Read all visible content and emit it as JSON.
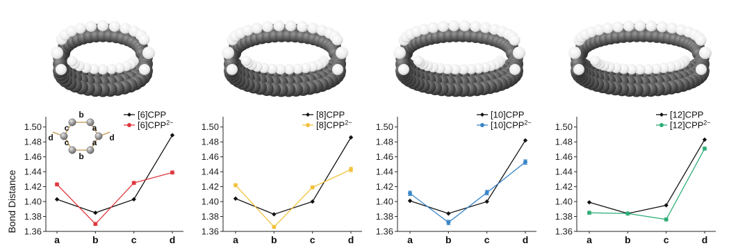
{
  "ylabel": "Bond Distance",
  "inset_labels": [
    "a",
    "b",
    "c",
    "d"
  ],
  "colors": {
    "reference": "#111111",
    "panel1": "#e0393e",
    "panel2": "#f2c23c",
    "panel3": "#3a86c8",
    "panel4": "#2fae78"
  },
  "chart_data": [
    {
      "type": "line",
      "categories": [
        "a",
        "b",
        "c",
        "d"
      ],
      "ylim": [
        1.36,
        1.51
      ],
      "yticks": [
        "1.36",
        "1.38",
        "1.40",
        "1.42",
        "1.44",
        "1.46",
        "1.48",
        "1.50"
      ],
      "ylabel": "Bond Distance",
      "series": [
        {
          "name": "[6]CPP",
          "sup": "",
          "color": "#111111",
          "marker": "diamond",
          "values": [
            1.403,
            1.385,
            1.403,
            1.489
          ],
          "errors": [
            0,
            0,
            0,
            0
          ]
        },
        {
          "name": "[6]CPP",
          "sup": "2−",
          "color": "#e0393e",
          "marker": "circle",
          "values": [
            1.423,
            1.37,
            1.425,
            1.439
          ],
          "errors": [
            0.002,
            0.002,
            0.002,
            0.002
          ]
        }
      ]
    },
    {
      "type": "line",
      "categories": [
        "a",
        "b",
        "c",
        "d"
      ],
      "ylim": [
        1.36,
        1.51
      ],
      "yticks": [
        "1.36",
        "1.38",
        "1.40",
        "1.42",
        "1.44",
        "1.46",
        "1.48",
        "1.50"
      ],
      "series": [
        {
          "name": "[8]CPP",
          "sup": "",
          "color": "#111111",
          "marker": "diamond",
          "values": [
            1.404,
            1.383,
            1.4,
            1.486
          ],
          "errors": [
            0,
            0,
            0,
            0
          ]
        },
        {
          "name": "[8]CPP",
          "sup": "2−",
          "color": "#f2c23c",
          "marker": "circle",
          "values": [
            1.422,
            1.366,
            1.419,
            1.443
          ],
          "errors": [
            0.002,
            0.002,
            0.002,
            0.003
          ]
        }
      ]
    },
    {
      "type": "line",
      "categories": [
        "a",
        "b",
        "c",
        "d"
      ],
      "ylim": [
        1.36,
        1.51
      ],
      "yticks": [
        "1.36",
        "1.38",
        "1.40",
        "1.42",
        "1.44",
        "1.46",
        "1.48",
        "1.50"
      ],
      "series": [
        {
          "name": "[10]CPP",
          "sup": "",
          "color": "#111111",
          "marker": "diamond",
          "values": [
            1.401,
            1.384,
            1.4,
            1.482
          ],
          "errors": [
            0,
            0,
            0,
            0
          ]
        },
        {
          "name": "[10]CPP",
          "sup": "2−",
          "color": "#3a86c8",
          "marker": "circle",
          "values": [
            1.411,
            1.372,
            1.412,
            1.453
          ],
          "errors": [
            0.003,
            0.003,
            0.003,
            0.003
          ]
        }
      ]
    },
    {
      "type": "line",
      "categories": [
        "a",
        "b",
        "c",
        "d"
      ],
      "ylim": [
        1.36,
        1.51
      ],
      "yticks": [
        "1.36",
        "1.38",
        "1.40",
        "1.42",
        "1.44",
        "1.46",
        "1.48",
        "1.50"
      ],
      "series": [
        {
          "name": "[12]CPP",
          "sup": "",
          "color": "#111111",
          "marker": "diamond",
          "values": [
            1.399,
            1.384,
            1.395,
            1.483
          ],
          "errors": [
            0,
            0,
            0,
            0
          ]
        },
        {
          "name": "[12]CPP",
          "sup": "2−",
          "color": "#2fae78",
          "marker": "circle",
          "values": [
            1.385,
            1.384,
            1.376,
            1.471
          ],
          "errors": [
            0.002,
            0.002,
            0.002,
            0.002
          ]
        }
      ]
    }
  ]
}
